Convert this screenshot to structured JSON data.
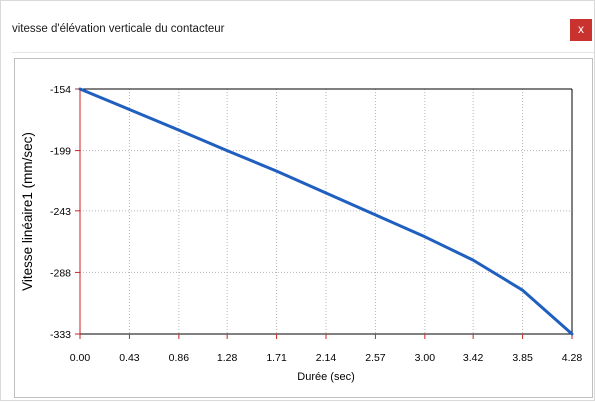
{
  "window": {
    "title": "vitesse d'élévation verticale du contacteur",
    "close_label": "x",
    "close_color": "#c9322e"
  },
  "chart_data": {
    "type": "line",
    "xlabel": "Durée (sec)",
    "ylabel": "Vitesse linéaire1 (mm/sec)",
    "x_ticks": [
      "0.00",
      "0.43",
      "0.86",
      "1.28",
      "1.71",
      "2.14",
      "2.57",
      "3.00",
      "3.42",
      "3.85",
      "4.28"
    ],
    "y_ticks": [
      "-154",
      "-199",
      "-243",
      "-288",
      "-333"
    ],
    "xlim": [
      0,
      4.28
    ],
    "ylim": [
      -333,
      -154
    ],
    "grid": true,
    "series": [
      {
        "color": "#1f5fbf",
        "x": [
          0.0,
          0.43,
          0.86,
          1.28,
          1.71,
          2.14,
          2.57,
          3.0,
          3.42,
          3.85,
          4.28
        ],
        "y": [
          -154,
          -169,
          -184,
          -199,
          -214,
          -230,
          -246,
          -262,
          -279,
          -301,
          -333
        ]
      }
    ]
  }
}
